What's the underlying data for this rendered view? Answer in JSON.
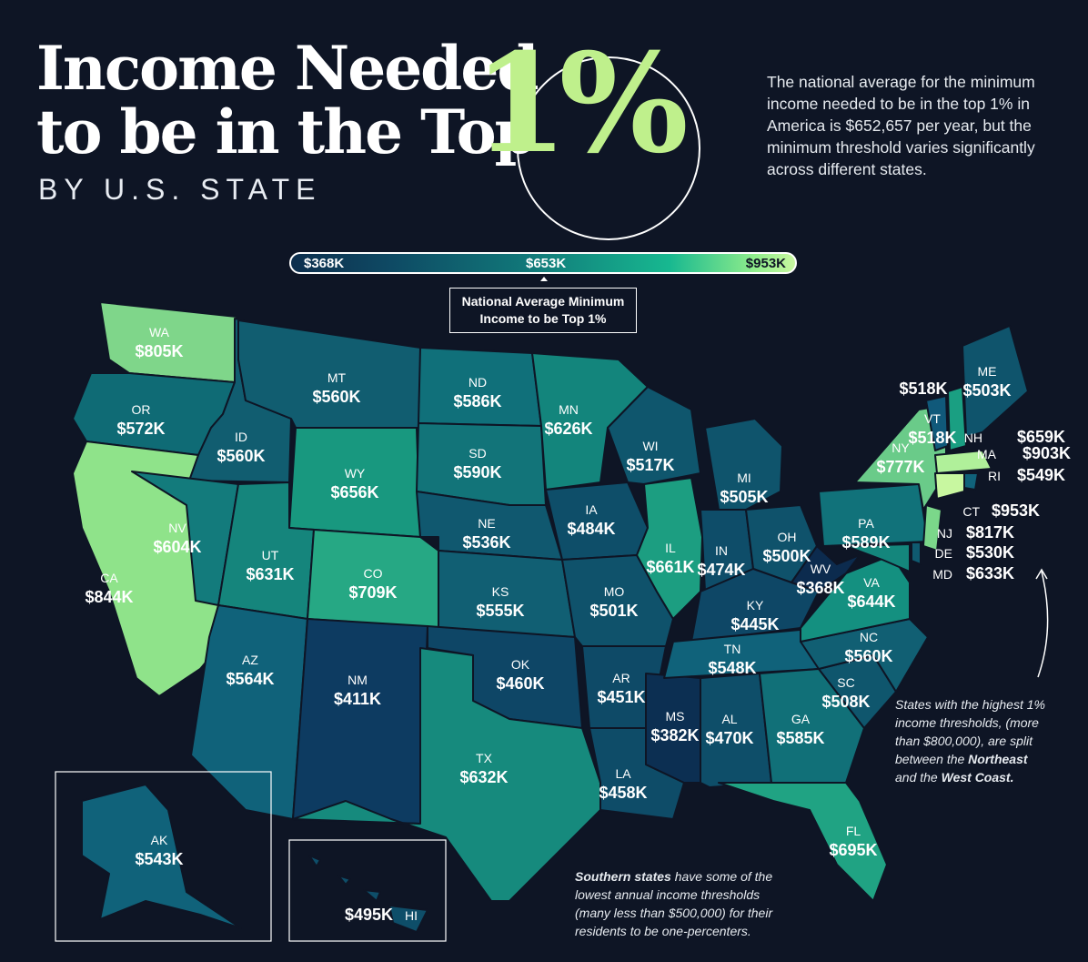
{
  "title": {
    "line1": "Income Needed",
    "line2": "to be in the Top",
    "big": "1%"
  },
  "subtitle": "BY U.S. STATE",
  "intro": "The national average for the minimum income needed to be in the top 1% in America is $652,657 per year, but the minimum threshold varies significantly across different states.",
  "scale": {
    "min": "$368K",
    "mid": "$653K",
    "max": "$953K",
    "pointer_label": [
      "National Average Minimum",
      "Income to be Top 1%"
    ]
  },
  "notes": {
    "northeast": [
      "States with the highest 1%",
      "income thresholds, (more",
      "than $800,000), are split",
      "between the ",
      "Northeast",
      " and the ",
      "West Coast."
    ],
    "south": [
      "Southern states",
      " have some of the",
      "lowest annual income thresholds",
      "(many less than $500,000) for their",
      "residents to be one-percenters."
    ]
  },
  "colors": {
    "background": "#0e1525",
    "accent": "#bff08c",
    "low": "#0d2e4d",
    "high": "#c8f7a0",
    "border": "#0e1525"
  },
  "states": {
    "WA": "$805K",
    "OR": "$572K",
    "CA": "$844K",
    "ID": "$560K",
    "NV": "$604K",
    "MT": "$560K",
    "WY": "$656K",
    "UT": "$631K",
    "AZ": "$564K",
    "CO": "$709K",
    "NM": "$411K",
    "ND": "$586K",
    "SD": "$590K",
    "NE": "$536K",
    "KS": "$555K",
    "OK": "$460K",
    "TX": "$632K",
    "MN": "$626K",
    "IA": "$484K",
    "MO": "$501K",
    "AR": "$451K",
    "LA": "$458K",
    "WI": "$517K",
    "IL": "$661K",
    "MS": "$382K",
    "MI": "$505K",
    "IN": "$474K",
    "OH": "$500K",
    "KY": "$445K",
    "TN": "$548K",
    "AL": "$470K",
    "GA": "$585K",
    "FL": "$695K",
    "SC": "$508K",
    "NC": "$560K",
    "VA": "$644K",
    "WV": "$368K",
    "PA": "$589K",
    "NY": "$777K",
    "VT": "$518K",
    "NH": "$659K",
    "ME": "$503K",
    "MA": "$903K",
    "RI": "$549K",
    "CT": "$953K",
    "NJ": "$817K",
    "DE": "$530K",
    "MD": "$633K",
    "AK": "$543K",
    "HI": "$495K"
  },
  "state_colors": {
    "WA": "#7fd68a",
    "OR": "#0f6b75",
    "CA": "#8fe38a",
    "ID": "#115d70",
    "NV": "#137b7c",
    "MT": "#115d70",
    "WY": "#18987f",
    "UT": "#15857c",
    "AZ": "#10627a",
    "CO": "#26a884",
    "NM": "#0d3b61",
    "ND": "#10707a",
    "SD": "#127479",
    "NE": "#10586f",
    "KS": "#115f73",
    "OK": "#0e4666",
    "TX": "#168a7d",
    "MN": "#13857c",
    "IA": "#0e4e69",
    "MO": "#0f526b",
    "AR": "#0e4a67",
    "LA": "#0e4c68",
    "WI": "#0f566d",
    "IL": "#1c9e81",
    "MS": "#0c2f52",
    "MI": "#0f546c",
    "IN": "#0e4d69",
    "OH": "#0f526b",
    "KY": "#0e4766",
    "TN": "#10627a",
    "AL": "#0e4e69",
    "GA": "#117078",
    "FL": "#20a383",
    "SC": "#0f566d",
    "NC": "#115f73",
    "VA": "#149080",
    "WV": "#0c2b4e",
    "PA": "#11727a",
    "NY": "#6acb89",
    "VT": "#10597a",
    "NH": "#1a9f82",
    "ME": "#0f546c",
    "MA": "#b0f09a",
    "RI": "#10627a",
    "CT": "#c8f7a0",
    "NJ": "#7bd78a",
    "DE": "#0f5a70",
    "MD": "#14867c",
    "AK": "#10627a",
    "HI": "#0e4e69"
  }
}
